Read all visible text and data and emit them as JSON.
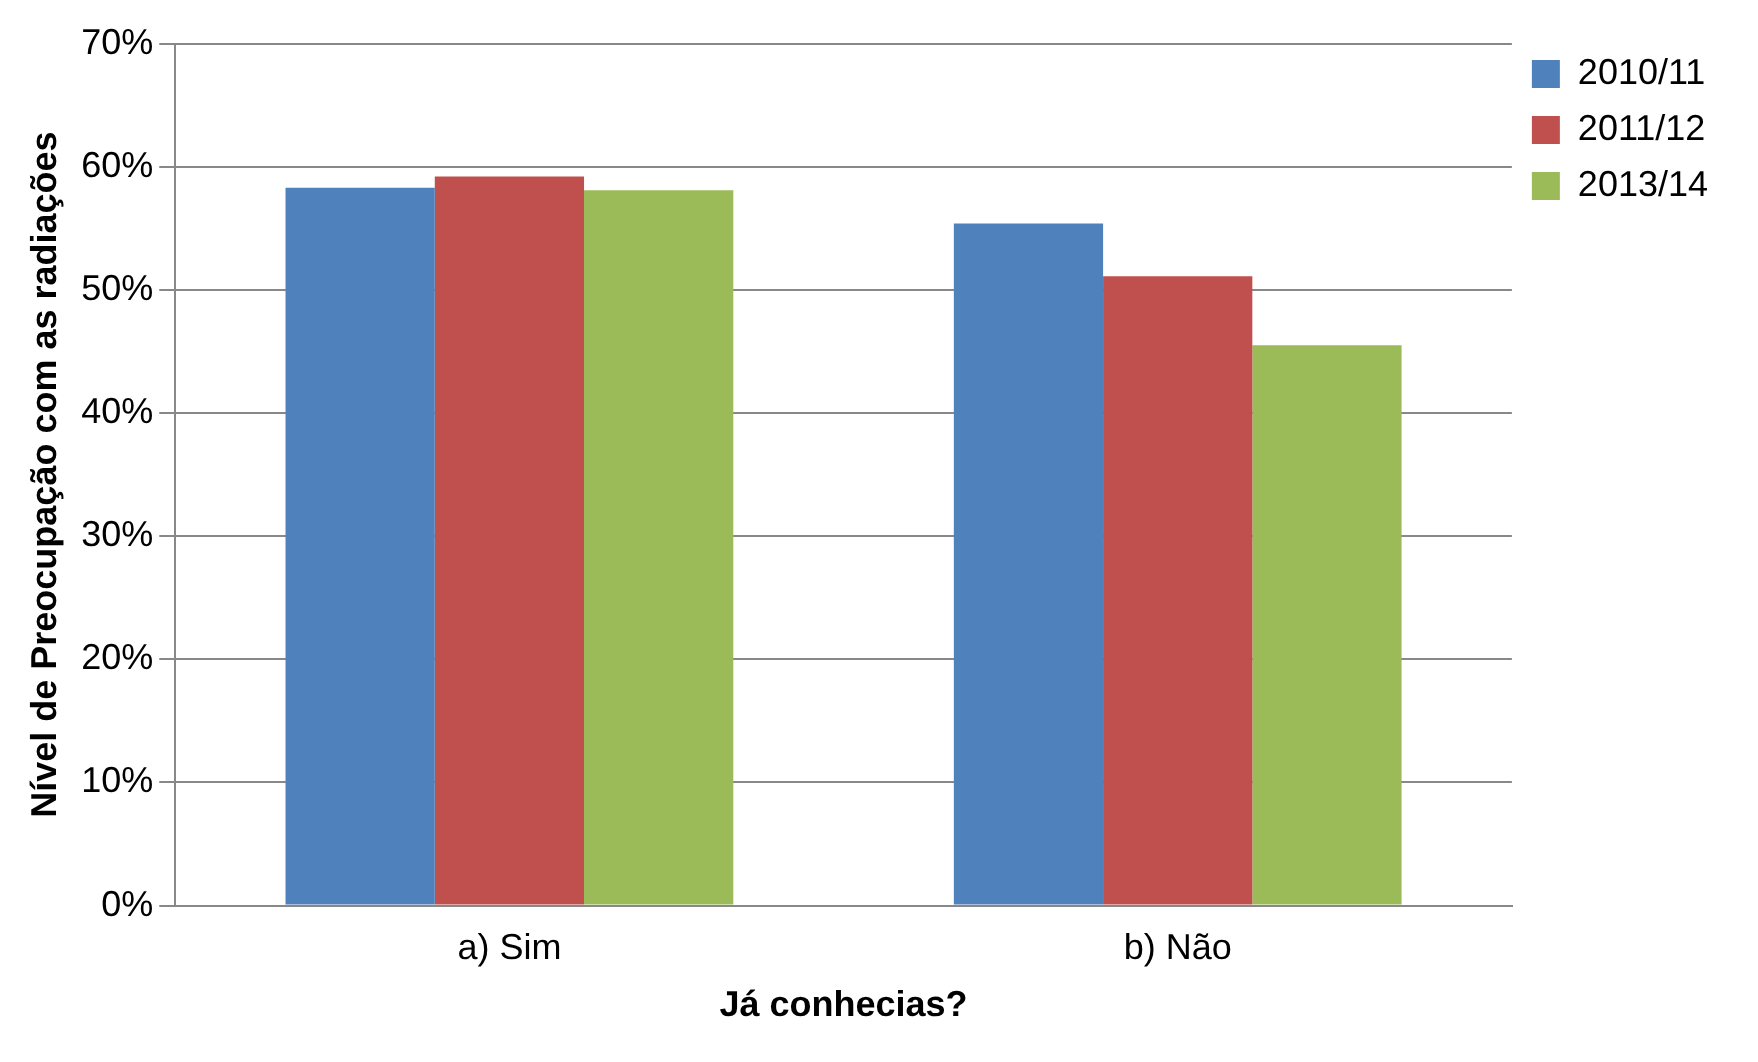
{
  "chart_data": {
    "type": "bar",
    "ylabel": "Nível de Preocupação com as radiações",
    "xlabel": "Já conhecias?",
    "categories": [
      "a) Sim",
      "b) Não"
    ],
    "series": [
      {
        "name": "2010/11",
        "color": "#4f81bd",
        "values": [
          58.3,
          55.4
        ]
      },
      {
        "name": "2011/12",
        "color": "#c0504d",
        "values": [
          59.2,
          51.1
        ]
      },
      {
        "name": "2013/14",
        "color": "#9bbb59",
        "values": [
          58.1,
          45.5
        ]
      }
    ],
    "ylim": [
      0,
      70
    ],
    "yticks": [
      {
        "value": 0,
        "label": "0%"
      },
      {
        "value": 10,
        "label": "10%"
      },
      {
        "value": 20,
        "label": "20%"
      },
      {
        "value": 30,
        "label": "30%"
      },
      {
        "value": 40,
        "label": "40%"
      },
      {
        "value": 50,
        "label": "50%"
      },
      {
        "value": 60,
        "label": "60%"
      },
      {
        "value": 70,
        "label": "70%"
      }
    ],
    "grid": "y",
    "legend": "top right"
  }
}
